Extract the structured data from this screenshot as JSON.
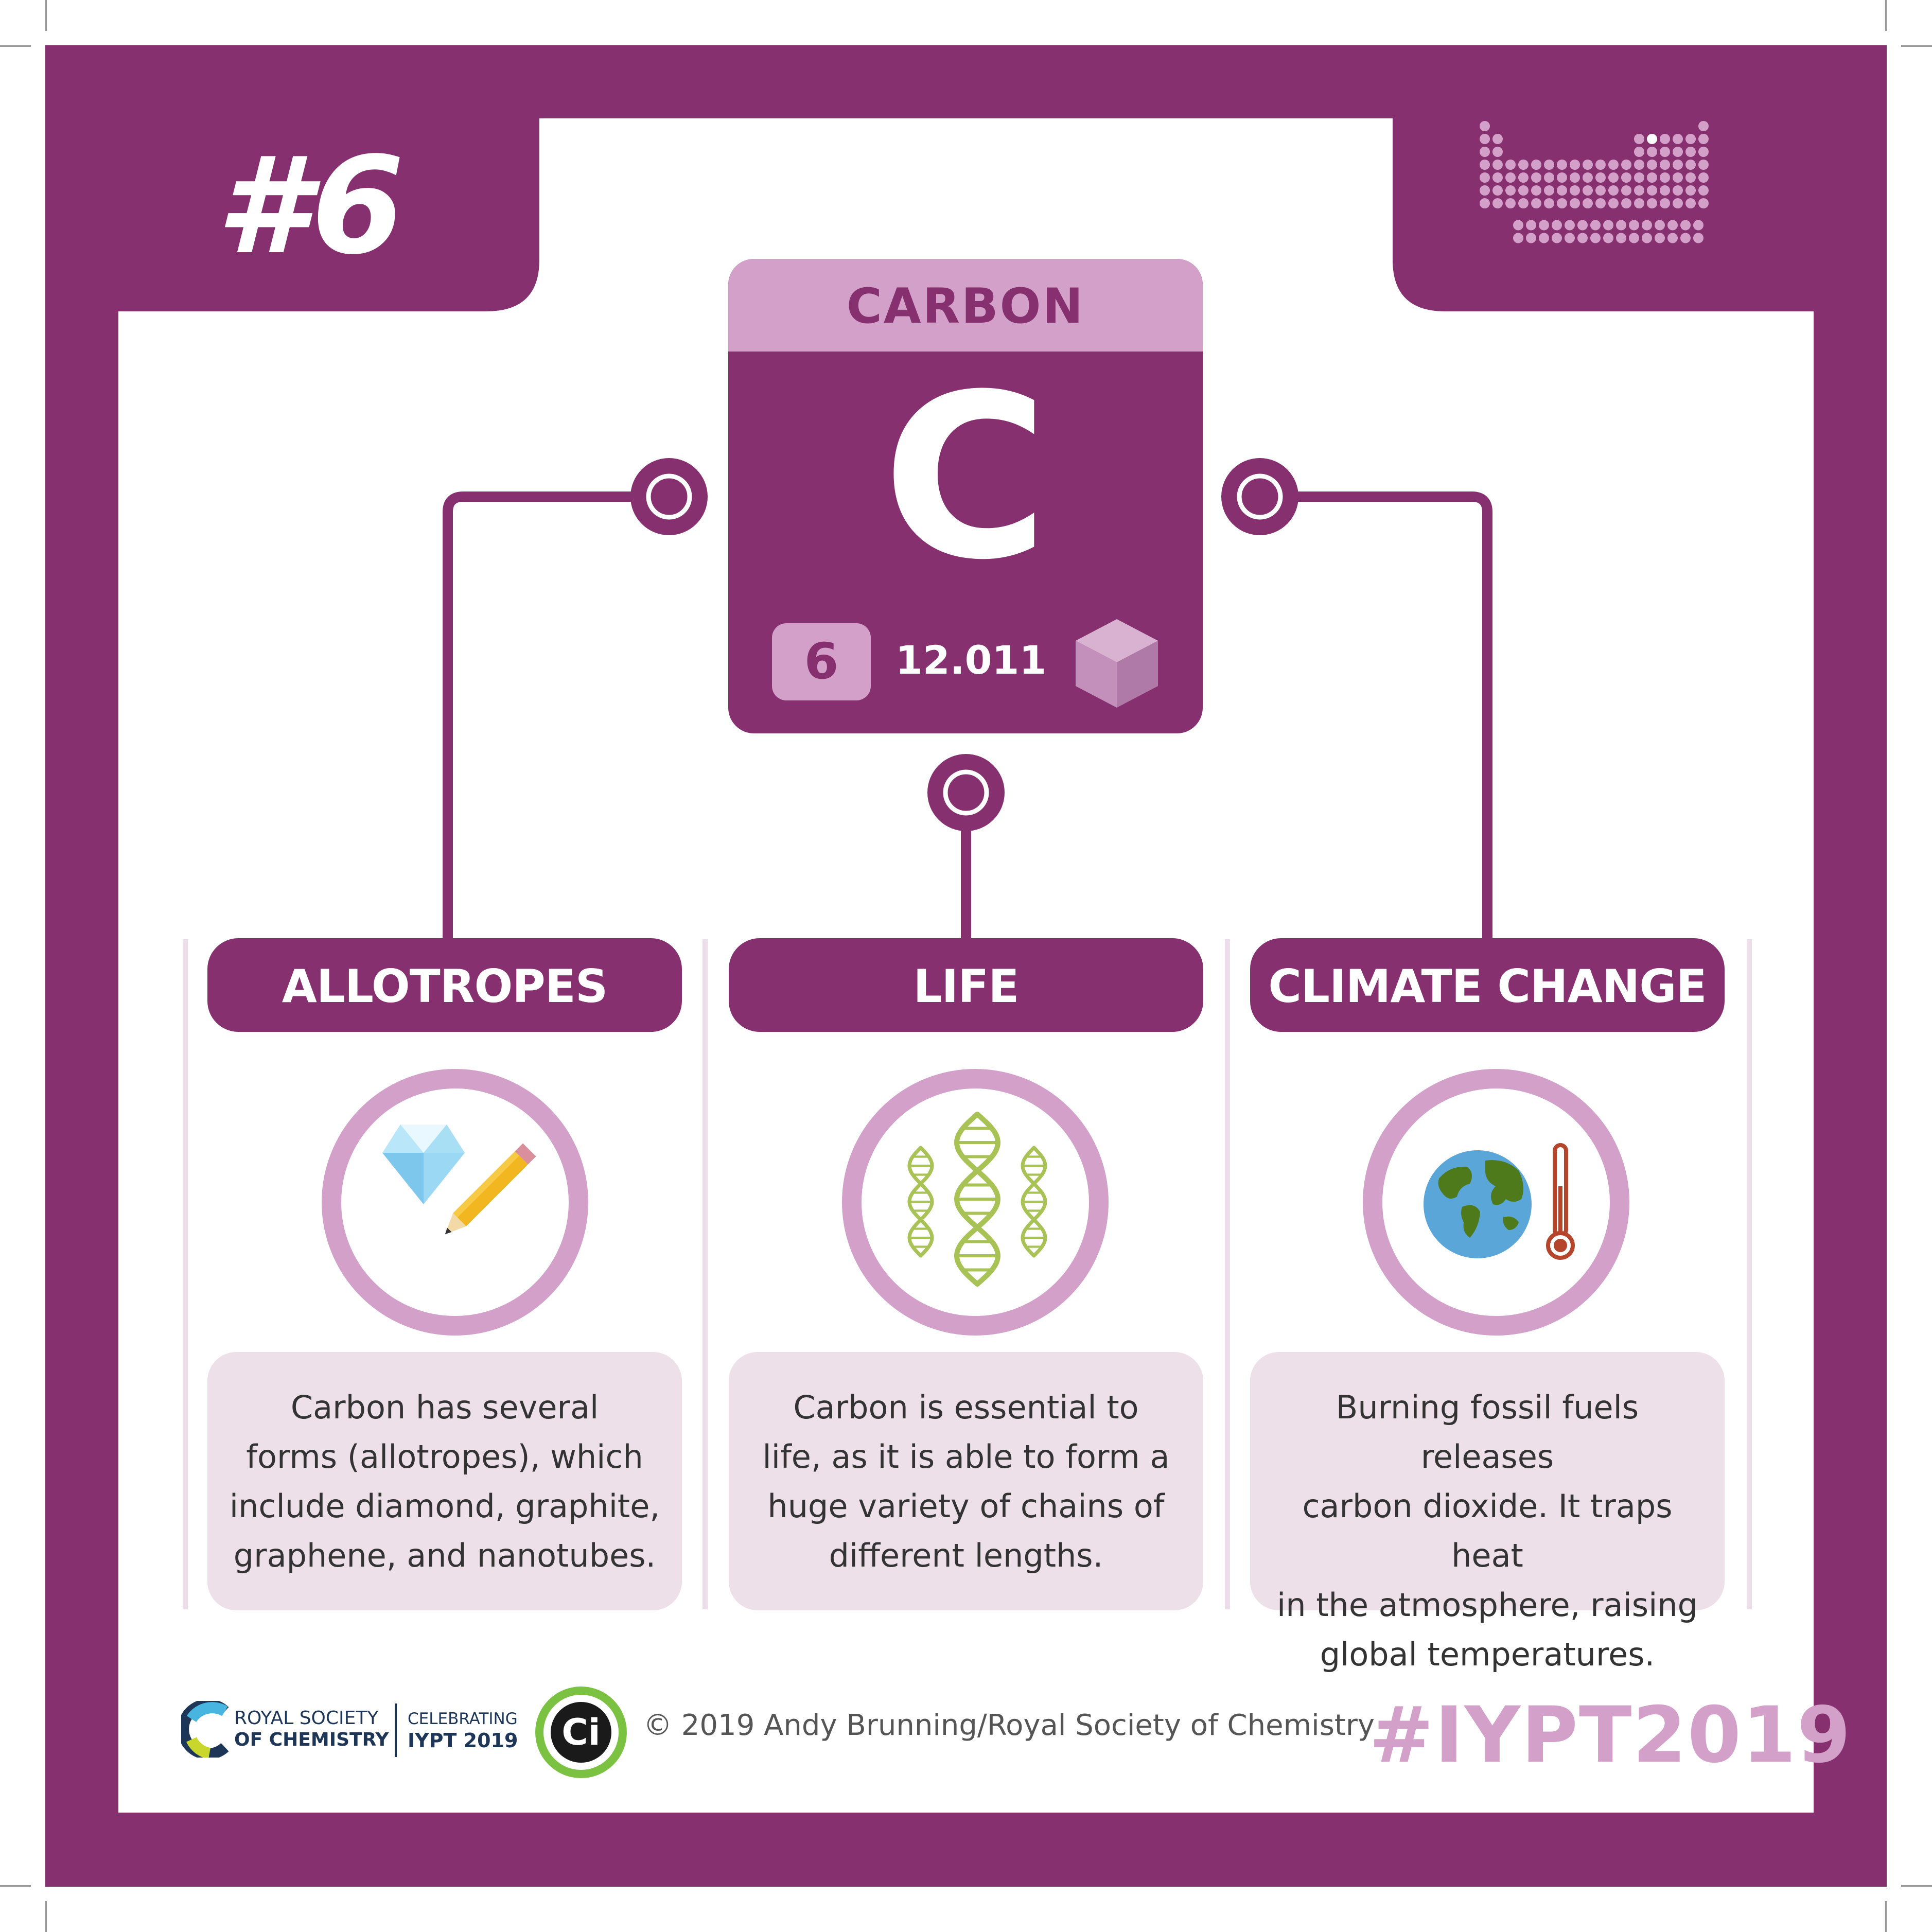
{
  "card": {
    "number": "#6"
  },
  "element": {
    "name": "CARBON",
    "symbol": "C",
    "atomic_number": "6",
    "atomic_mass": "12.011"
  },
  "sections": [
    {
      "title": "ALLOTROPES",
      "icon": "diamond-pencil-icon",
      "text_lines": [
        "Carbon has several",
        "forms (allotropes), which",
        "include diamond, graphite,",
        "graphene, and nanotubes."
      ]
    },
    {
      "title": "LIFE",
      "icon": "dna-icon",
      "text_lines": [
        "Carbon is essential to",
        "life, as it is able to form a",
        "huge variety of chains of",
        "different lengths."
      ]
    },
    {
      "title": "CLIMATE CHANGE",
      "icon": "globe-thermometer-icon",
      "text_lines": [
        "Burning fossil fuels releases",
        "carbon dioxide. It traps heat",
        "in the atmosphere, raising",
        "global temperatures."
      ]
    }
  ],
  "footer": {
    "rsc_line1": "ROYAL SOCIETY",
    "rsc_line2": "OF CHEMISTRY",
    "celebrating_line1": "CELEBRATING",
    "celebrating_line2": "IYPT 2019",
    "ci_logo": "Ci",
    "credit": "© 2019 Andy Brunning/Royal Society of Chemistry",
    "hashtag": "#IYPT2019"
  },
  "colors": {
    "primary": "#86306f",
    "light": "#d2a0c8",
    "pale": "#ede0e9",
    "dna": "#a8c256",
    "ocean": "#5aa6d8",
    "land": "#4f7a1c",
    "thermo": "#b5452a"
  }
}
